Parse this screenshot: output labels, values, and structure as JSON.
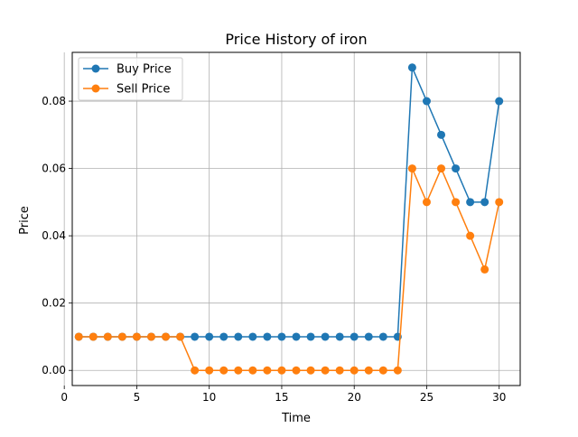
{
  "chart_data": {
    "type": "line",
    "title": "Price History of iron",
    "xlabel": "Time",
    "ylabel": "Price",
    "xlim": [
      0.55,
      31.45
    ],
    "ylim": [
      -0.0045,
      0.0945
    ],
    "xticks": [
      0,
      5,
      10,
      15,
      20,
      25,
      30
    ],
    "xtick_labels": [
      "0",
      "5",
      "10",
      "15",
      "20",
      "25",
      "30"
    ],
    "yticks": [
      0.0,
      0.02,
      0.04,
      0.06,
      0.08
    ],
    "ytick_labels": [
      "0.00",
      "0.02",
      "0.04",
      "0.06",
      "0.08"
    ],
    "grid": true,
    "legend_position": "top-left",
    "x": [
      1,
      2,
      3,
      4,
      5,
      6,
      7,
      8,
      9,
      10,
      11,
      12,
      13,
      14,
      15,
      16,
      17,
      18,
      19,
      20,
      21,
      22,
      23,
      24,
      25,
      26,
      27,
      28,
      29,
      30
    ],
    "series": [
      {
        "name": "Buy Price",
        "color": "#1f77b4",
        "values": [
          0.01,
          0.01,
          0.01,
          0.01,
          0.01,
          0.01,
          0.01,
          0.01,
          0.01,
          0.01,
          0.01,
          0.01,
          0.01,
          0.01,
          0.01,
          0.01,
          0.01,
          0.01,
          0.01,
          0.01,
          0.01,
          0.01,
          0.01,
          0.09,
          0.08,
          0.07,
          0.06,
          0.05,
          0.05,
          0.08
        ]
      },
      {
        "name": "Sell Price",
        "color": "#ff7f0e",
        "values": [
          0.01,
          0.01,
          0.01,
          0.01,
          0.01,
          0.01,
          0.01,
          0.01,
          0.0,
          0.0,
          0.0,
          0.0,
          0.0,
          0.0,
          0.0,
          0.0,
          0.0,
          0.0,
          0.0,
          0.0,
          0.0,
          0.0,
          0.0,
          0.06,
          0.05,
          0.06,
          0.05,
          0.04,
          0.03,
          0.05
        ]
      }
    ]
  }
}
